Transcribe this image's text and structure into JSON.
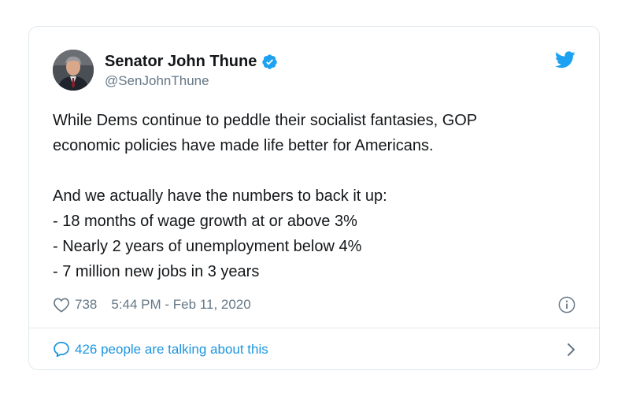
{
  "tweet": {
    "author": {
      "display_name": "Senator John Thune",
      "handle": "@SenJohnThune",
      "verified": true
    },
    "text": {
      "line1": "While Dems continue to peddle their socialist fantasies, GOP",
      "line2": "economic policies have made life better for Americans.",
      "line3": "And we actually have the numbers to back it up:",
      "line4": "- 18 months of wage growth at or above 3%",
      "line5": "- Nearly 2 years of unemployment below 4%",
      "line6": "- 7 million new jobs in 3 years"
    },
    "likes": "738",
    "timestamp": "5:44 PM - Feb 11, 2020",
    "conversation": "426 people are talking about this"
  },
  "icons": {
    "logo": "twitter-bird-icon",
    "verified": "verified-badge-icon",
    "like": "heart-icon",
    "info": "info-icon",
    "reply": "speech-bubble-icon",
    "more": "chevron-right-icon"
  },
  "colors": {
    "brand": "#1da1f2",
    "link": "#1b95e0",
    "muted": "#657786",
    "text": "#14171a",
    "border": "#e1e8ed"
  }
}
